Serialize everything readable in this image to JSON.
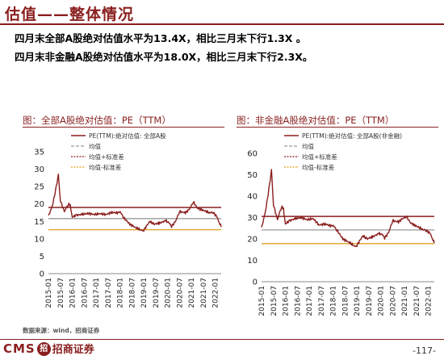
{
  "page": {
    "title": "估值——整体情况",
    "summary_1": "四月末全部A股绝对估值水平为13.4X，相比三月末下行1.3X 。",
    "summary_2": "四月末非金融A股绝对估值水平为18.0X，相比三月末下行2.3X。",
    "source": "数据来源：wind，招商证券",
    "logo_text": "CMS",
    "logo_badge": "招",
    "logo_cn": "招商证券",
    "page_number": "-117-"
  },
  "chart_data": [
    {
      "type": "line",
      "title": "图：全部A股绝对估值：PE（TTM）",
      "xlabels": [
        "2015-01",
        "2015-07",
        "2016-01",
        "2016-07",
        "2017-01",
        "2017-07",
        "2018-01",
        "2018-07",
        "2019-01",
        "2019-07",
        "2020-01",
        "2020-07",
        "2021-01",
        "2021-07",
        "2022-01"
      ],
      "ylim": [
        0,
        35
      ],
      "yticks": [
        0,
        5,
        10,
        15,
        20,
        25,
        30,
        35
      ],
      "colors": {
        "pe": "#8a1f1f",
        "mean": "#999999",
        "plus": "#8a1f1f",
        "minus": "#e0a020"
      },
      "legend": [
        "PE(TTM):绝对估值: 全部A股",
        "均值",
        "均值+标准差",
        "均值-标准差"
      ],
      "mean": 15.8,
      "mean_plus_std": 19.0,
      "mean_minus_std": 12.6,
      "pe_series": [
        {
          "x": "2015-01",
          "y": 16.5
        },
        {
          "x": "2015-03",
          "y": 19.5
        },
        {
          "x": "2015-05",
          "y": 25.0
        },
        {
          "x": "2015-06",
          "y": 28.6
        },
        {
          "x": "2015-07",
          "y": 21.0
        },
        {
          "x": "2015-09",
          "y": 17.8
        },
        {
          "x": "2015-11",
          "y": 20.0
        },
        {
          "x": "2015-12",
          "y": 19.5
        },
        {
          "x": "2016-01",
          "y": 16.2
        },
        {
          "x": "2016-03",
          "y": 16.8
        },
        {
          "x": "2016-06",
          "y": 17.0
        },
        {
          "x": "2016-09",
          "y": 17.3
        },
        {
          "x": "2016-12",
          "y": 17.0
        },
        {
          "x": "2017-03",
          "y": 17.2
        },
        {
          "x": "2017-06",
          "y": 17.0
        },
        {
          "x": "2017-09",
          "y": 17.6
        },
        {
          "x": "2017-12",
          "y": 17.4
        },
        {
          "x": "2018-01",
          "y": 17.9
        },
        {
          "x": "2018-03",
          "y": 16.0
        },
        {
          "x": "2018-06",
          "y": 14.2
        },
        {
          "x": "2018-09",
          "y": 13.2
        },
        {
          "x": "2018-12",
          "y": 12.4
        },
        {
          "x": "2019-01",
          "y": 12.5
        },
        {
          "x": "2019-04",
          "y": 15.0
        },
        {
          "x": "2019-06",
          "y": 14.2
        },
        {
          "x": "2019-09",
          "y": 14.5
        },
        {
          "x": "2019-12",
          "y": 15.2
        },
        {
          "x": "2020-02",
          "y": 14.5
        },
        {
          "x": "2020-03",
          "y": 13.6
        },
        {
          "x": "2020-05",
          "y": 15.0
        },
        {
          "x": "2020-07",
          "y": 17.8
        },
        {
          "x": "2020-10",
          "y": 17.5
        },
        {
          "x": "2020-12",
          "y": 18.5
        },
        {
          "x": "2021-02",
          "y": 20.6
        },
        {
          "x": "2021-04",
          "y": 18.8
        },
        {
          "x": "2021-07",
          "y": 18.2
        },
        {
          "x": "2021-10",
          "y": 17.5
        },
        {
          "x": "2021-12",
          "y": 17.6
        },
        {
          "x": "2022-02",
          "y": 16.2
        },
        {
          "x": "2022-03",
          "y": 14.7
        },
        {
          "x": "2022-04",
          "y": 13.4
        }
      ]
    },
    {
      "type": "line",
      "title": "图：非金融A股绝对估值：PE（TTM）",
      "xlabels": [
        "2015-01",
        "2015-07",
        "2016-01",
        "2016-07",
        "2017-01",
        "2017-07",
        "2018-01",
        "2018-07",
        "2019-01",
        "2019-07",
        "2020-01",
        "2020-07",
        "2021-01",
        "2021-07",
        "2022-01"
      ],
      "ylim": [
        0,
        60
      ],
      "yticks": [
        0,
        10,
        20,
        30,
        40,
        50,
        60
      ],
      "colors": {
        "pe": "#8a1f1f",
        "mean": "#999999",
        "plus": "#8a1f1f",
        "minus": "#e0a020"
      },
      "legend": [
        "PE(TTM):绝对估值: 全部A股(非金融)",
        "均值",
        "均值+标准差",
        "均值-标准差"
      ],
      "mean": 24.2,
      "mean_plus_std": 30.5,
      "mean_minus_std": 17.8,
      "pe_series": [
        {
          "x": "2015-01",
          "y": 25.0
        },
        {
          "x": "2015-03",
          "y": 33.0
        },
        {
          "x": "2015-05",
          "y": 45.0
        },
        {
          "x": "2015-06",
          "y": 52.5
        },
        {
          "x": "2015-07",
          "y": 36.0
        },
        {
          "x": "2015-09",
          "y": 29.0
        },
        {
          "x": "2015-11",
          "y": 35.0
        },
        {
          "x": "2015-12",
          "y": 34.0
        },
        {
          "x": "2016-01",
          "y": 27.0
        },
        {
          "x": "2016-03",
          "y": 28.5
        },
        {
          "x": "2016-06",
          "y": 29.5
        },
        {
          "x": "2016-09",
          "y": 30.0
        },
        {
          "x": "2016-12",
          "y": 29.0
        },
        {
          "x": "2017-03",
          "y": 29.5
        },
        {
          "x": "2017-06",
          "y": 26.5
        },
        {
          "x": "2017-09",
          "y": 27.0
        },
        {
          "x": "2017-12",
          "y": 26.0
        },
        {
          "x": "2018-01",
          "y": 26.5
        },
        {
          "x": "2018-03",
          "y": 24.0
        },
        {
          "x": "2018-06",
          "y": 20.0
        },
        {
          "x": "2018-09",
          "y": 18.5
        },
        {
          "x": "2018-12",
          "y": 16.5
        },
        {
          "x": "2019-01",
          "y": 17.0
        },
        {
          "x": "2019-04",
          "y": 21.5
        },
        {
          "x": "2019-06",
          "y": 20.0
        },
        {
          "x": "2019-09",
          "y": 21.0
        },
        {
          "x": "2019-12",
          "y": 22.5
        },
        {
          "x": "2020-02",
          "y": 22.0
        },
        {
          "x": "2020-03",
          "y": 20.5
        },
        {
          "x": "2020-05",
          "y": 23.0
        },
        {
          "x": "2020-07",
          "y": 28.5
        },
        {
          "x": "2020-10",
          "y": 28.0
        },
        {
          "x": "2020-12",
          "y": 29.5
        },
        {
          "x": "2021-02",
          "y": 30.5
        },
        {
          "x": "2021-04",
          "y": 27.5
        },
        {
          "x": "2021-07",
          "y": 26.0
        },
        {
          "x": "2021-10",
          "y": 24.5
        },
        {
          "x": "2021-12",
          "y": 24.0
        },
        {
          "x": "2022-02",
          "y": 22.5
        },
        {
          "x": "2022-03",
          "y": 20.3
        },
        {
          "x": "2022-04",
          "y": 18.0
        }
      ]
    }
  ]
}
